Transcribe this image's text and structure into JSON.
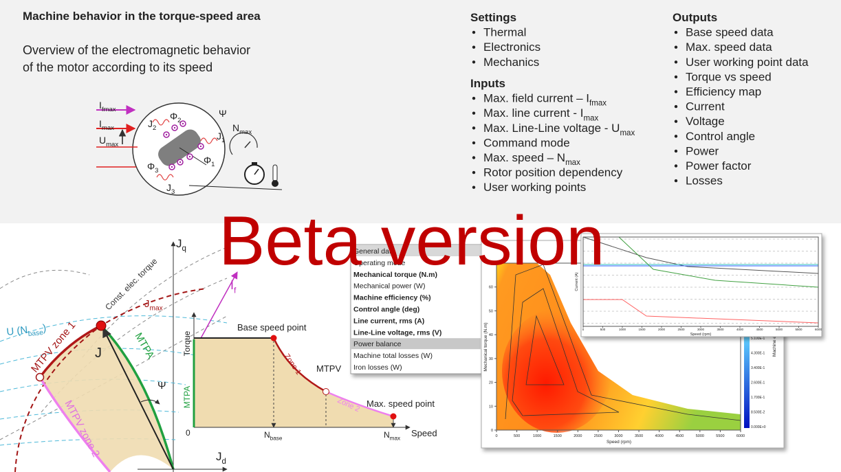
{
  "header": {
    "title": "Machine behavior in the torque-speed  area",
    "description": [
      "Overview of the electromagnetic behavior",
      "of the motor according to its speed"
    ]
  },
  "settings": {
    "title": "Settings",
    "items": [
      "Thermal",
      "Electronics",
      "Mechanics"
    ]
  },
  "inputs": {
    "title": "Inputs",
    "items": [
      {
        "text": "Max. field current – I",
        "sub": "fmax"
      },
      {
        "text": "Max. line current - I",
        "sub": "max"
      },
      {
        "text": "Max. Line-Line voltage - U",
        "sub": "max"
      },
      {
        "text": "Command mode"
      },
      {
        "text": "Max. speed – N",
        "sub": "max"
      },
      {
        "text": "Rotor position dependency"
      },
      {
        "text": "User working points"
      }
    ]
  },
  "outputs": {
    "title": "Outputs",
    "items": [
      "Base speed data",
      "Max. speed data",
      "User working point data",
      "Torque vs speed",
      "Efficiency map",
      "Current",
      "Voltage",
      "Control angle",
      "Power",
      "Power factor",
      "Losses"
    ]
  },
  "motor_diagram": {
    "labels": [
      {
        "text": "I",
        "sub": "fmax"
      },
      {
        "text": "I",
        "sub": "max"
      },
      {
        "text": "U",
        "sub": "max"
      },
      {
        "text": "J",
        "sub": "2"
      },
      {
        "text": "Φ",
        "sub": "2"
      },
      {
        "text": "Ψ"
      },
      {
        "text": "N",
        "sub": "max"
      },
      {
        "text": "J",
        "sub": "1"
      },
      {
        "text": "Φ",
        "sub": "1"
      },
      {
        "text": "Φ",
        "sub": "3"
      },
      {
        "text": "J",
        "sub": "3"
      }
    ]
  },
  "watermark": "Beta version",
  "vector_diagram": {
    "labels": [
      {
        "text": "J",
        "sub": "q"
      },
      {
        "text": "Const. elec. torque"
      },
      {
        "text": "J",
        "sub": "max"
      },
      {
        "text": "I",
        "sub": "f"
      },
      {
        "text": "U (N",
        "sub": "base",
        "tail": ")"
      },
      {
        "text": "MTPV zone 1"
      },
      {
        "text": "J"
      },
      {
        "text": "MTPA"
      },
      {
        "text": "Ψ"
      },
      {
        "text": "MTPV zone 2"
      },
      {
        "text": "J",
        "sub": "d"
      }
    ]
  },
  "torque_speed": {
    "labels": [
      {
        "text": "Torque"
      },
      {
        "text": "MTPA"
      },
      {
        "text": "Base speed point"
      },
      {
        "text": "Zone 1"
      },
      {
        "text": "MTPV"
      },
      {
        "text": "Zone 2"
      },
      {
        "text": "Max. speed point"
      },
      {
        "text": "0"
      },
      {
        "text": "N",
        "sub": "base"
      },
      {
        "text": "N",
        "sub": "max"
      },
      {
        "text": "Speed"
      }
    ]
  },
  "software": {
    "menu": [
      "General data",
      "Operating mode",
      "Mechanical torque (N.m)",
      "Mechanical power (W)",
      "Machine efficiency (%)",
      "Control angle (deg)",
      "Line current, rms (A)",
      "Line-Line voltage, rms (V)",
      "Power balance",
      "Machine total losses (W)",
      "Iron losses (W)"
    ],
    "efficiency_map": {
      "y_label": "Mechanical torque (N.m)",
      "x_label": "Speed (rpm)",
      "xticks": [
        0,
        500,
        1000,
        1500,
        2000,
        2500,
        3000,
        3500,
        4000,
        4500,
        5000,
        5500,
        6000
      ],
      "yticks": [
        0,
        10,
        20,
        30,
        40,
        50,
        60,
        70
      ],
      "colorbar_label": "Machine effic",
      "colorbar_ticks": [
        "5.100E-1",
        "4.300E-1",
        "3.400E-1",
        "2.600E-1",
        "1.700E-1",
        "8.500E-2",
        "0.000E+0"
      ]
    },
    "current_chart": {
      "y_label": "Current (A)",
      "x_label": "Speed (rpm)",
      "xticks": [
        0,
        500,
        1000,
        1500,
        2000,
        2500,
        3000,
        3500,
        4000,
        4500,
        5000,
        5500,
        6000
      ]
    }
  }
}
